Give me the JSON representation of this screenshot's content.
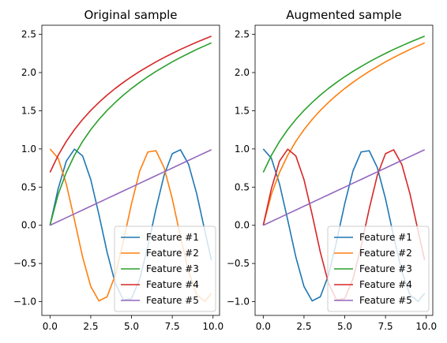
{
  "chart_data": [
    {
      "type": "line",
      "title": "Original sample",
      "xlabel": "",
      "ylabel": "",
      "xlim": [
        -0.5,
        10.4
      ],
      "ylim": [
        -1.18,
        2.62
      ],
      "xticks": [
        0.0,
        2.5,
        5.0,
        7.5,
        10.0
      ],
      "xtick_labels": [
        "0.0",
        "2.5",
        "5.0",
        "7.5",
        "10.0"
      ],
      "yticks": [
        -1.0,
        -0.5,
        0.0,
        0.5,
        1.0,
        1.5,
        2.0,
        2.5
      ],
      "ytick_labels": [
        "−1.0",
        "−0.5",
        "0.0",
        "0.5",
        "1.0",
        "1.5",
        "2.0",
        "2.5"
      ],
      "grid": false,
      "legend_position": "lower-right",
      "x": [
        0.0,
        0.5,
        1.0,
        1.5,
        2.0,
        2.5,
        3.0,
        3.5,
        4.0,
        4.5,
        5.0,
        5.5,
        6.0,
        6.5,
        7.0,
        7.5,
        8.0,
        8.5,
        9.0,
        9.5,
        9.9
      ],
      "series": [
        {
          "name": "Feature #1",
          "color": "#1f77b4",
          "values": [
            0.0,
            0.479,
            0.841,
            0.997,
            0.909,
            0.598,
            0.141,
            -0.351,
            -0.757,
            -0.978,
            -0.959,
            -0.706,
            -0.279,
            0.215,
            0.657,
            0.938,
            0.989,
            0.798,
            0.412,
            -0.075,
            -0.457
          ]
        },
        {
          "name": "Feature #2",
          "color": "#ff7f0e",
          "values": [
            1.0,
            0.878,
            0.54,
            0.071,
            -0.416,
            -0.801,
            -0.99,
            -0.936,
            -0.654,
            -0.211,
            0.284,
            0.709,
            0.96,
            0.977,
            0.754,
            0.347,
            -0.146,
            -0.602,
            -0.911,
            -0.997,
            -0.889
          ]
        },
        {
          "name": "Feature #3",
          "color": "#2ca02c",
          "values": [
            0.0,
            0.405,
            0.693,
            0.916,
            1.099,
            1.253,
            1.386,
            1.504,
            1.609,
            1.705,
            1.792,
            1.872,
            1.946,
            2.015,
            2.079,
            2.14,
            2.197,
            2.251,
            2.303,
            2.351,
            2.389
          ]
        },
        {
          "name": "Feature #4",
          "color": "#d62728",
          "values": [
            0.693,
            0.916,
            1.099,
            1.253,
            1.386,
            1.504,
            1.609,
            1.705,
            1.792,
            1.872,
            1.946,
            2.015,
            2.079,
            2.14,
            2.197,
            2.251,
            2.303,
            2.351,
            2.398,
            2.442,
            2.477
          ]
        },
        {
          "name": "Feature #5",
          "color": "#9467bd",
          "values": [
            0.0,
            0.05,
            0.1,
            0.15,
            0.2,
            0.25,
            0.3,
            0.35,
            0.4,
            0.45,
            0.5,
            0.55,
            0.6,
            0.65,
            0.7,
            0.75,
            0.8,
            0.85,
            0.9,
            0.95,
            0.99
          ]
        }
      ]
    },
    {
      "type": "line",
      "title": "Augmented sample",
      "xlabel": "",
      "ylabel": "",
      "xlim": [
        -0.5,
        10.4
      ],
      "ylim": [
        -1.18,
        2.62
      ],
      "xticks": [
        0.0,
        2.5,
        5.0,
        7.5,
        10.0
      ],
      "xtick_labels": [
        "0.0",
        "2.5",
        "5.0",
        "7.5",
        "10.0"
      ],
      "yticks": [
        -1.0,
        -0.5,
        0.0,
        0.5,
        1.0,
        1.5,
        2.0,
        2.5
      ],
      "ytick_labels": [
        "−1.0",
        "−0.5",
        "0.0",
        "0.5",
        "1.0",
        "1.5",
        "2.0",
        "2.5"
      ],
      "grid": false,
      "legend_position": "lower-right",
      "x": [
        0.0,
        0.5,
        1.0,
        1.5,
        2.0,
        2.5,
        3.0,
        3.5,
        4.0,
        4.5,
        5.0,
        5.5,
        6.0,
        6.5,
        7.0,
        7.5,
        8.0,
        8.5,
        9.0,
        9.5,
        9.9
      ],
      "series": [
        {
          "name": "Feature #1",
          "color": "#1f77b4",
          "values": [
            1.0,
            0.878,
            0.54,
            0.071,
            -0.416,
            -0.801,
            -0.99,
            -0.936,
            -0.654,
            -0.211,
            0.284,
            0.709,
            0.96,
            0.977,
            0.754,
            0.347,
            -0.146,
            -0.602,
            -0.911,
            -0.997,
            -0.889
          ]
        },
        {
          "name": "Feature #2",
          "color": "#ff7f0e",
          "values": [
            0.0,
            0.405,
            0.693,
            0.916,
            1.099,
            1.253,
            1.386,
            1.504,
            1.609,
            1.705,
            1.792,
            1.872,
            1.946,
            2.015,
            2.079,
            2.14,
            2.197,
            2.251,
            2.303,
            2.351,
            2.389
          ]
        },
        {
          "name": "Feature #3",
          "color": "#2ca02c",
          "values": [
            0.693,
            0.916,
            1.099,
            1.253,
            1.386,
            1.504,
            1.609,
            1.705,
            1.792,
            1.872,
            1.946,
            2.015,
            2.079,
            2.14,
            2.197,
            2.251,
            2.303,
            2.351,
            2.398,
            2.442,
            2.477
          ]
        },
        {
          "name": "Feature #4",
          "color": "#d62728",
          "values": [
            0.0,
            0.479,
            0.841,
            0.997,
            0.909,
            0.598,
            0.141,
            -0.351,
            -0.757,
            -0.978,
            -0.959,
            -0.706,
            -0.279,
            0.215,
            0.657,
            0.938,
            0.989,
            0.798,
            0.412,
            -0.075,
            -0.457
          ]
        },
        {
          "name": "Feature #5",
          "color": "#9467bd",
          "values": [
            0.0,
            0.05,
            0.1,
            0.15,
            0.2,
            0.25,
            0.3,
            0.35,
            0.4,
            0.45,
            0.5,
            0.55,
            0.6,
            0.65,
            0.7,
            0.75,
            0.8,
            0.85,
            0.9,
            0.95,
            0.99
          ]
        }
      ]
    }
  ]
}
